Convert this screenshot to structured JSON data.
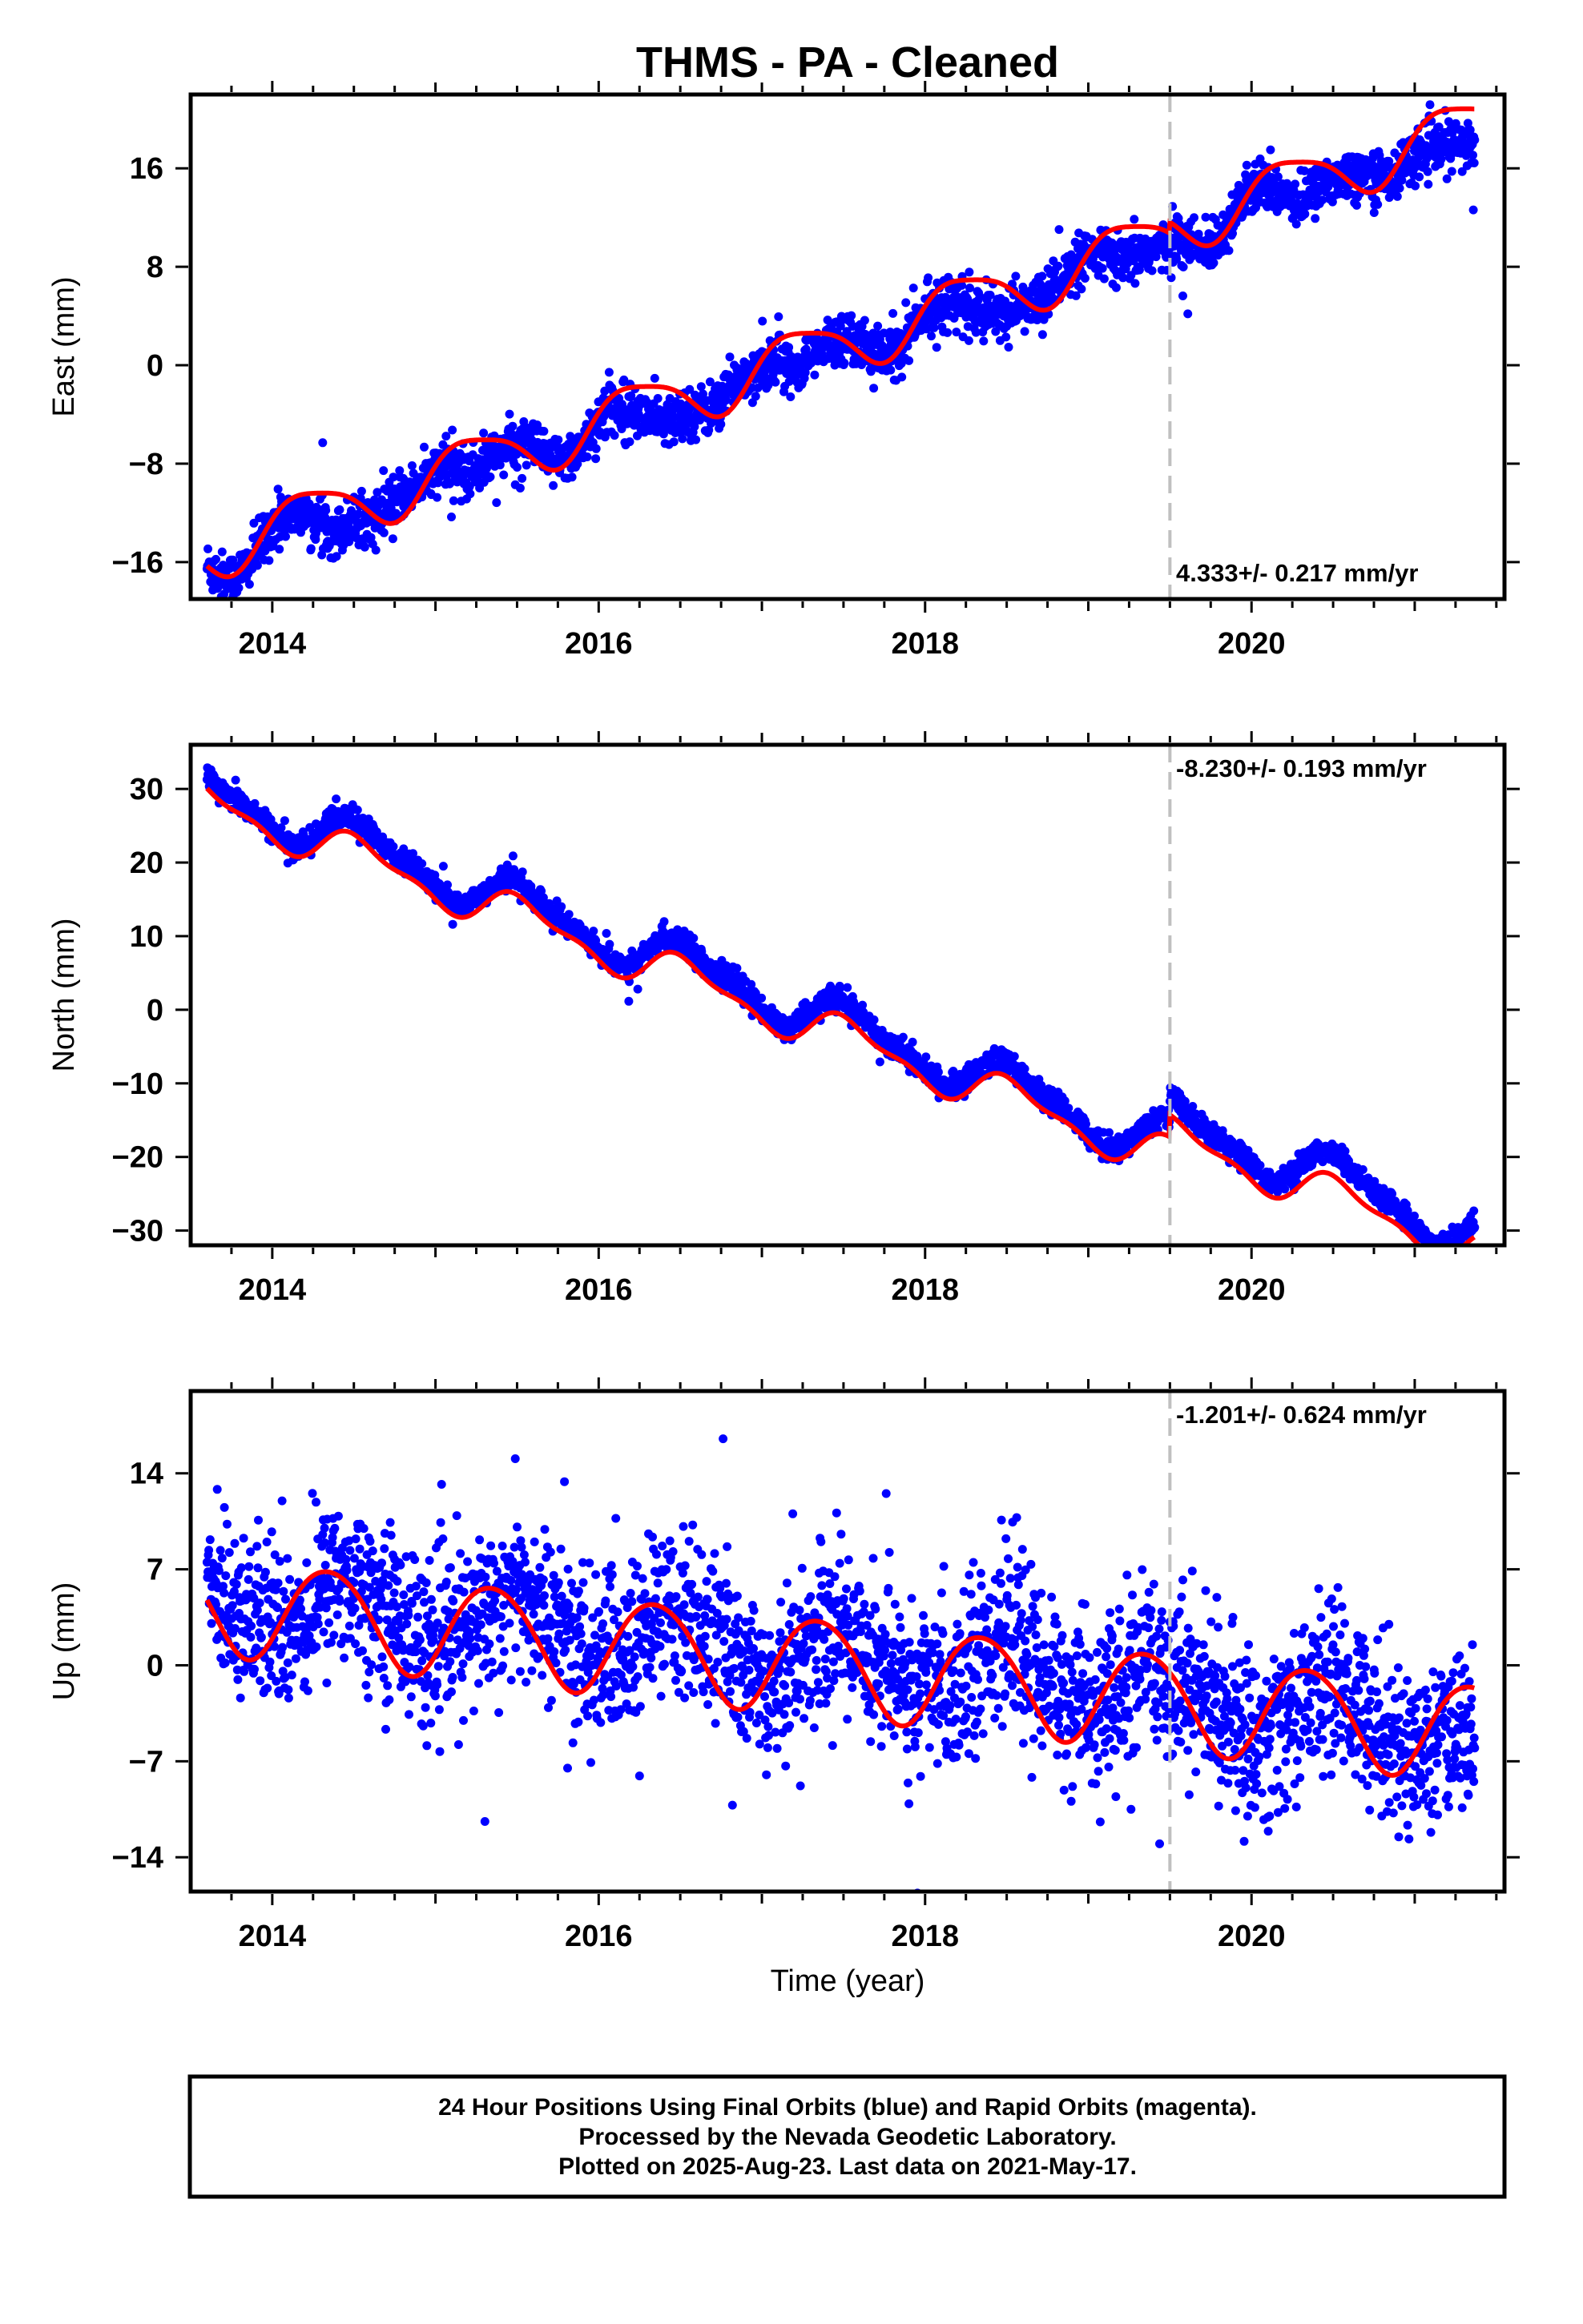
{
  "title": "THMS  - PA - Cleaned",
  "xlabel": "Time (year)",
  "colors": {
    "final_orbits": "#0000ff",
    "model": "#ff0000",
    "marker_line": "#c0c0c0",
    "frame": "#000000"
  },
  "footer": {
    "line1": "24 Hour Positions Using Final Orbits (blue) and Rapid Orbits (magenta).",
    "line2": "Processed by the Nevada Geodetic Laboratory.",
    "line3": "Plotted on 2025-Aug-23. Last data on 2021-May-17."
  },
  "chart_data": [
    {
      "type": "scatter",
      "ylabel": "East (mm)",
      "rate": "4.333+/- 0.217 mm/yr",
      "rate_position": "bottom-right",
      "xlim": [
        2013.5,
        2021.55
      ],
      "ylim": [
        -19,
        22
      ],
      "yticks": [
        -16,
        -8,
        0,
        8,
        16
      ],
      "ytick_labels": [
        "−16",
        "−8",
        "0",
        "8",
        "16"
      ],
      "xticks": [
        2014,
        2016,
        2018,
        2020
      ],
      "step_epoch": 2019.5,
      "model": {
        "slope": 4.333,
        "base": -13.3,
        "base_epoch": 2014.0,
        "annual_amp": 2.3,
        "annual_phase": 0.02,
        "semiannual_amp": 0.5,
        "semiannual_phase": 0.1,
        "step": 0.9
      },
      "scatter_sigma": 1.0,
      "series": [
        {
          "name": "Final orbits",
          "x": [
            2013.6,
            2014.0,
            2014.4,
            2014.8,
            2015.2,
            2015.6,
            2016.0,
            2016.4,
            2016.8,
            2017.2,
            2017.6,
            2018.0,
            2018.4,
            2018.8,
            2019.2,
            2019.5,
            2019.9,
            2020.3,
            2020.7,
            2021.1,
            2021.37
          ],
          "y": [
            -16.2,
            -13.4,
            -15.6,
            -8.9,
            -11.0,
            -5.7,
            -4.8,
            -7.0,
            -0.2,
            -2.4,
            3.0,
            3.9,
            1.7,
            8.3,
            6.1,
            9.7,
            13.1,
            10.8,
            17.3,
            15.4,
            15.8
          ]
        }
      ]
    },
    {
      "type": "scatter",
      "ylabel": "North (mm)",
      "rate": "-8.230+/- 0.193 mm/yr",
      "rate_position": "top-right",
      "xlim": [
        2013.5,
        2021.55
      ],
      "ylim": [
        -32,
        36
      ],
      "yticks": [
        -30,
        -20,
        -10,
        0,
        10,
        20,
        30
      ],
      "ytick_labels": [
        "−30",
        "−20",
        "−10",
        "0",
        "10",
        "20",
        "30"
      ],
      "xticks": [
        2014,
        2016,
        2018,
        2020
      ],
      "step_epoch": 2019.5,
      "model": {
        "slope": -8.23,
        "base": 25.0,
        "base_epoch": 2014.0,
        "annual_amp": 2.5,
        "annual_phase": -0.3,
        "semiannual_amp": 1.0,
        "semiannual_phase": 0.2,
        "step": 3.0
      },
      "scatter_sigma": 0.8,
      "series": [
        {
          "name": "Final orbits",
          "x": [
            2013.6,
            2014.0,
            2014.5,
            2015.0,
            2015.5,
            2016.0,
            2016.5,
            2017.0,
            2017.5,
            2018.0,
            2018.5,
            2019.0,
            2019.45,
            2019.5,
            2020.0,
            2020.5,
            2021.0,
            2021.37
          ],
          "y": [
            33.5,
            25.0,
            27.5,
            17.5,
            19.0,
            9.0,
            11.0,
            1.0,
            2.5,
            -7.5,
            -5.5,
            -16.0,
            -13.5,
            -10.0,
            -20.0,
            -17.5,
            -28.0,
            -28.0
          ]
        }
      ]
    },
    {
      "type": "scatter",
      "ylabel": "Up (mm)",
      "rate": "-1.201+/- 0.624 mm/yr",
      "rate_position": "top-right",
      "xlim": [
        2013.5,
        2021.55
      ],
      "ylim": [
        -16.5,
        20
      ],
      "yticks": [
        -14,
        -7,
        0,
        7,
        14
      ],
      "ytick_labels": [
        "−14",
        "−7",
        "0",
        "7",
        "14"
      ],
      "xticks": [
        2014,
        2016,
        2018,
        2020
      ],
      "step_epoch": 2019.5,
      "model": {
        "slope": -1.201,
        "base": 4.0,
        "base_epoch": 2014.0,
        "annual_amp": 3.5,
        "annual_phase": 0.9,
        "semiannual_amp": 0.3,
        "semiannual_phase": 0.0,
        "step": 0.0
      },
      "scatter_sigma": 3.0,
      "series": [
        {
          "name": "Final orbits",
          "x": [
            2013.6,
            2013.8,
            2014.2,
            2014.8,
            2015.2,
            2015.8,
            2016.2,
            2016.8,
            2017.2,
            2017.8,
            2018.2,
            2018.8,
            2019.2,
            2019.8,
            2020.2,
            2020.8,
            2021.2,
            2021.37
          ],
          "y": [
            6.5,
            7.5,
            1.5,
            6.5,
            0.5,
            5.5,
            -1.0,
            4.0,
            -2.0,
            3.0,
            -3.0,
            2.0,
            -4.5,
            -0.5,
            -7.0,
            -1.5,
            -8.0,
            -7.0
          ]
        }
      ]
    }
  ]
}
